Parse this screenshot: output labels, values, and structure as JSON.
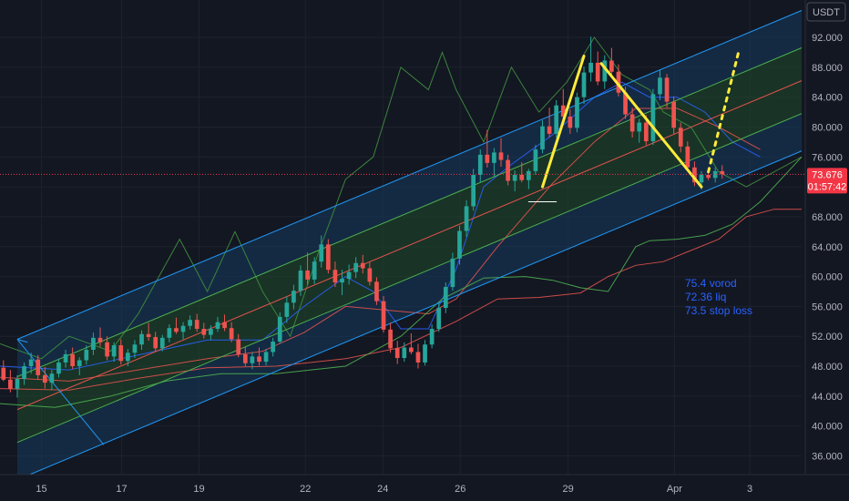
{
  "chart_data": {
    "type": "candlestick",
    "currency_label": "USDT",
    "y_axis": {
      "ticks": [
        36,
        40,
        44,
        48,
        52,
        56,
        60,
        64,
        68,
        72,
        76,
        80,
        84,
        88,
        92
      ],
      "tick_labels": [
        "36.000",
        "40.000",
        "44.000",
        "48.000",
        "52.000",
        "56.000",
        "60.000",
        "64.000",
        "68.000",
        "72.000",
        "76.000",
        "80.000",
        "84.000",
        "88.000",
        "92.000"
      ],
      "ylim": [
        33.5,
        97
      ]
    },
    "x_axis": {
      "labels": [
        "15",
        "17",
        "19",
        "22",
        "24",
        "26",
        "29",
        "Apr",
        "3"
      ],
      "label_bars": [
        6,
        17.6,
        28.8,
        44.2,
        55.4,
        66.6,
        82.2,
        97.6,
        108.5
      ],
      "xlim": [
        0,
        116
      ]
    },
    "last_price": {
      "value": "73.676",
      "countdown": "01:57:42",
      "numeric": 73.676
    },
    "candles": [
      [
        47.8,
        48.8,
        46.0,
        46.2
      ],
      [
        46.2,
        47.5,
        44.5,
        45.0
      ],
      [
        45.0,
        46.8,
        43.8,
        46.3
      ],
      [
        46.3,
        48.5,
        45.5,
        48.0
      ],
      [
        48.0,
        49.8,
        47.0,
        48.9
      ],
      [
        48.9,
        49.5,
        46.2,
        46.8
      ],
      [
        46.8,
        47.9,
        45.0,
        45.8
      ],
      [
        45.8,
        47.5,
        44.8,
        47.0
      ],
      [
        47.0,
        49.0,
        46.5,
        48.5
      ],
      [
        48.5,
        50.2,
        47.8,
        49.6
      ],
      [
        49.6,
        50.5,
        47.6,
        48.0
      ],
      [
        48.0,
        49.2,
        46.8,
        48.8
      ],
      [
        48.8,
        50.8,
        48.2,
        50.2
      ],
      [
        50.2,
        52.5,
        49.5,
        51.8
      ],
      [
        51.8,
        53.2,
        50.6,
        51.2
      ],
      [
        51.2,
        52.0,
        48.8,
        49.3
      ],
      [
        49.3,
        51.2,
        48.6,
        50.8
      ],
      [
        50.8,
        51.6,
        48.2,
        48.7
      ],
      [
        48.7,
        50.3,
        48.0,
        49.8
      ],
      [
        49.8,
        51.5,
        49.1,
        50.9
      ],
      [
        50.9,
        52.8,
        50.2,
        52.3
      ],
      [
        52.3,
        53.8,
        51.4,
        51.9
      ],
      [
        51.9,
        52.6,
        49.9,
        50.4
      ],
      [
        50.4,
        52.2,
        50.0,
        51.8
      ],
      [
        51.8,
        53.6,
        51.2,
        53.1
      ],
      [
        53.1,
        54.5,
        52.3,
        52.6
      ],
      [
        52.6,
        53.9,
        51.6,
        53.4
      ],
      [
        53.4,
        54.8,
        52.9,
        54.2
      ],
      [
        54.2,
        55.0,
        52.6,
        53.0
      ],
      [
        53.0,
        53.8,
        51.7,
        52.2
      ],
      [
        52.2,
        53.5,
        51.5,
        53.0
      ],
      [
        53.0,
        54.6,
        52.6,
        53.9
      ],
      [
        53.9,
        54.9,
        52.7,
        53.1
      ],
      [
        53.1,
        53.9,
        51.2,
        51.6
      ],
      [
        51.6,
        52.3,
        49.2,
        49.6
      ],
      [
        49.6,
        50.6,
        48.0,
        48.4
      ],
      [
        48.4,
        49.9,
        47.6,
        49.3
      ],
      [
        49.3,
        50.5,
        48.1,
        48.6
      ],
      [
        48.6,
        50.3,
        48.1,
        49.9
      ],
      [
        49.9,
        51.8,
        49.3,
        51.3
      ],
      [
        51.3,
        55.2,
        51.0,
        54.6
      ],
      [
        54.6,
        57.3,
        53.8,
        56.5
      ],
      [
        56.5,
        58.9,
        55.6,
        58.1
      ],
      [
        58.1,
        61.5,
        57.4,
        60.8
      ],
      [
        60.8,
        63.2,
        58.9,
        59.6
      ],
      [
        59.6,
        62.6,
        59.0,
        62.0
      ],
      [
        62.0,
        65.5,
        61.2,
        64.3
      ],
      [
        64.3,
        65.0,
        60.4,
        60.9
      ],
      [
        60.9,
        62.0,
        58.6,
        59.2
      ],
      [
        59.2,
        60.9,
        57.5,
        59.7
      ],
      [
        59.7,
        61.6,
        58.9,
        60.6
      ],
      [
        60.6,
        62.6,
        59.8,
        61.8
      ],
      [
        61.8,
        62.9,
        60.4,
        61.1
      ],
      [
        61.1,
        61.9,
        58.8,
        59.3
      ],
      [
        59.3,
        59.9,
        56.2,
        56.7
      ],
      [
        56.7,
        57.4,
        52.5,
        52.9
      ],
      [
        52.9,
        53.8,
        49.8,
        50.4
      ],
      [
        50.4,
        51.4,
        48.3,
        49.1
      ],
      [
        49.1,
        51.2,
        48.6,
        50.5
      ],
      [
        50.5,
        52.4,
        49.6,
        49.9
      ],
      [
        49.9,
        51.0,
        47.7,
        48.5
      ],
      [
        48.5,
        51.5,
        48.1,
        50.9
      ],
      [
        50.9,
        53.6,
        50.4,
        53.0
      ],
      [
        53.0,
        56.4,
        52.6,
        55.8
      ],
      [
        55.8,
        59.2,
        55.1,
        58.6
      ],
      [
        58.6,
        63.2,
        58.1,
        62.4
      ],
      [
        62.4,
        66.8,
        61.6,
        66.1
      ],
      [
        66.1,
        70.2,
        65.3,
        69.4
      ],
      [
        69.4,
        74.4,
        68.8,
        73.6
      ],
      [
        73.6,
        77.0,
        72.6,
        76.3
      ],
      [
        76.3,
        79.6,
        74.6,
        75.2
      ],
      [
        75.2,
        77.2,
        73.4,
        76.6
      ],
      [
        76.6,
        78.5,
        74.7,
        75.6
      ],
      [
        75.6,
        76.3,
        72.2,
        72.8
      ],
      [
        72.8,
        74.2,
        71.4,
        73.6
      ],
      [
        73.6,
        75.3,
        72.6,
        72.9
      ],
      [
        72.9,
        74.4,
        71.7,
        74.1
      ],
      [
        74.1,
        77.6,
        73.6,
        77.0
      ],
      [
        77.0,
        80.9,
        76.5,
        80.1
      ],
      [
        80.1,
        82.6,
        78.6,
        79.1
      ],
      [
        79.1,
        83.6,
        78.6,
        82.9
      ],
      [
        82.9,
        85.1,
        80.6,
        81.4
      ],
      [
        81.4,
        82.4,
        79.1,
        79.9
      ],
      [
        79.9,
        84.6,
        79.3,
        84.0
      ],
      [
        84.0,
        88.1,
        83.1,
        87.3
      ],
      [
        87.3,
        92.1,
        86.1,
        88.6
      ],
      [
        88.6,
        90.1,
        85.6,
        86.1
      ],
      [
        86.1,
        89.6,
        85.1,
        88.9
      ],
      [
        88.9,
        90.6,
        86.6,
        87.4
      ],
      [
        87.4,
        88.4,
        84.1,
        84.6
      ],
      [
        84.6,
        85.4,
        81.1,
        81.7
      ],
      [
        81.7,
        82.6,
        78.6,
        79.4
      ],
      [
        79.4,
        81.1,
        77.9,
        80.6
      ],
      [
        80.6,
        81.6,
        77.6,
        78.1
      ],
      [
        78.1,
        85.1,
        77.6,
        84.4
      ],
      [
        84.4,
        87.6,
        83.6,
        86.6
      ],
      [
        86.6,
        87.1,
        82.6,
        83.4
      ],
      [
        83.4,
        84.1,
        79.1,
        79.9
      ],
      [
        79.9,
        80.6,
        76.6,
        77.4
      ],
      [
        77.4,
        78.1,
        74.1,
        74.6
      ],
      [
        74.6,
        75.4,
        72.1,
        72.6
      ],
      [
        72.6,
        74.1,
        71.6,
        73.6
      ],
      [
        73.6,
        74.4,
        72.9,
        73.2
      ],
      [
        73.2,
        74.6,
        72.6,
        74.1
      ],
      [
        74.1,
        74.9,
        73.1,
        73.676
      ]
    ],
    "channel": {
      "x_range": [
        2.5,
        116
      ],
      "mid_line": [
        42.2,
        86.2
      ],
      "bands": [
        {
          "offset_low": -4.4,
          "offset_high": 0,
          "fill": "#1f4a2a"
        },
        {
          "offset_low": 0,
          "offset_high": 4.4,
          "fill": "#1f4a2a"
        },
        {
          "offset_low": -9.4,
          "offset_high": -4.4,
          "fill": "#153a5c"
        },
        {
          "offset_low": 4.4,
          "offset_high": 9.4,
          "fill": "#153a5c"
        }
      ],
      "lines": [
        {
          "offset": 0,
          "color": "#e0524c"
        },
        {
          "offset": 4.4,
          "color": "#4caf50"
        },
        {
          "offset": -4.4,
          "color": "#4caf50"
        },
        {
          "offset": 9.4,
          "color": "#2196f3"
        },
        {
          "offset": -9.4,
          "color": "#2196f3"
        }
      ],
      "flag_lines": [
        [
          [
            2.5,
            51.6
          ],
          [
            15,
            37.5
          ]
        ],
        [
          [
            2.5,
            51.6
          ],
          [
            4,
            51.2
          ]
        ]
      ]
    },
    "indicators": [
      {
        "color": "#3f8f3f",
        "points": [
          [
            0,
            51
          ],
          [
            6,
            49
          ],
          [
            10,
            52
          ],
          [
            16,
            50
          ],
          [
            20,
            55
          ],
          [
            26,
            65
          ],
          [
            30,
            58
          ],
          [
            34,
            66
          ],
          [
            38,
            58
          ],
          [
            42,
            52
          ],
          [
            46,
            63
          ],
          [
            50,
            73
          ],
          [
            54,
            76
          ],
          [
            58,
            88
          ],
          [
            62,
            85
          ],
          [
            64,
            90
          ],
          [
            66,
            85
          ],
          [
            70,
            78
          ],
          [
            74,
            88
          ],
          [
            78,
            82
          ],
          [
            82,
            86
          ],
          [
            86,
            92
          ],
          [
            90,
            87
          ],
          [
            94,
            85
          ],
          [
            96,
            82
          ],
          [
            100,
            80
          ],
          [
            104,
            74
          ],
          [
            108,
            72
          ],
          [
            112,
            74
          ],
          [
            116,
            76
          ]
        ]
      },
      {
        "color": "#2962ff",
        "points": [
          [
            0,
            48
          ],
          [
            10,
            47.5
          ],
          [
            20,
            49.5
          ],
          [
            30,
            51.5
          ],
          [
            38,
            51.5
          ],
          [
            44,
            56
          ],
          [
            50,
            60
          ],
          [
            54,
            58
          ],
          [
            58,
            53
          ],
          [
            62,
            53
          ],
          [
            66,
            61
          ],
          [
            70,
            72
          ],
          [
            74,
            75
          ],
          [
            80,
            79
          ],
          [
            86,
            84
          ],
          [
            90,
            86
          ],
          [
            94,
            84
          ],
          [
            98,
            84
          ],
          [
            102,
            82
          ],
          [
            106,
            78
          ],
          [
            110,
            76
          ]
        ]
      },
      {
        "color": "#e0524c",
        "points": [
          [
            0,
            46.5
          ],
          [
            10,
            46.0
          ],
          [
            20,
            47.5
          ],
          [
            30,
            49.0
          ],
          [
            38,
            50.0
          ],
          [
            44,
            52.5
          ],
          [
            50,
            56.0
          ],
          [
            56,
            55.5
          ],
          [
            62,
            55.0
          ],
          [
            66,
            57.0
          ],
          [
            72,
            64.0
          ],
          [
            80,
            72.5
          ],
          [
            86,
            78.0
          ],
          [
            92,
            82.5
          ],
          [
            98,
            82.5
          ],
          [
            104,
            80.0
          ],
          [
            110,
            77.0
          ]
        ]
      },
      {
        "color": "#e0524c",
        "points": [
          [
            0,
            45
          ],
          [
            10,
            44.8
          ],
          [
            20,
            46.4
          ],
          [
            30,
            47.8
          ],
          [
            40,
            48
          ],
          [
            50,
            49
          ],
          [
            58,
            50.5
          ],
          [
            66,
            54
          ],
          [
            72,
            57
          ],
          [
            78,
            57.2
          ],
          [
            84,
            57.8
          ],
          [
            88,
            60
          ],
          [
            92,
            61.5
          ],
          [
            96,
            62
          ],
          [
            100,
            63.5
          ],
          [
            104,
            65
          ],
          [
            108,
            68
          ],
          [
            112,
            69
          ],
          [
            116,
            69
          ]
        ]
      },
      {
        "color": "#4caf50",
        "points": [
          [
            0,
            43
          ],
          [
            8,
            42.5
          ],
          [
            16,
            44
          ],
          [
            24,
            46
          ],
          [
            32,
            47
          ],
          [
            40,
            47
          ],
          [
            50,
            48
          ],
          [
            58,
            52
          ],
          [
            64,
            57
          ],
          [
            70,
            59.8
          ],
          [
            76,
            60
          ],
          [
            80,
            59.5
          ],
          [
            84,
            58.5
          ],
          [
            88,
            58
          ],
          [
            90,
            61
          ],
          [
            92,
            64
          ],
          [
            94,
            64.8
          ],
          [
            98,
            65
          ],
          [
            102,
            65.5
          ],
          [
            106,
            67
          ],
          [
            110,
            70
          ],
          [
            114,
            74
          ],
          [
            116,
            76
          ]
        ]
      }
    ],
    "annotations": {
      "lines": [
        {
          "color": "#ffeb3b",
          "dashed": false,
          "points": [
            [
              78.5,
              72
            ],
            [
              84.5,
              89.5
            ]
          ]
        },
        {
          "color": "#ffeb3b",
          "dashed": false,
          "points": [
            [
              87,
              88.5
            ],
            [
              101.5,
              72
            ]
          ]
        },
        {
          "color": "#ffeb3b",
          "dashed": true,
          "points": [
            [
              102.5,
              74
            ],
            [
              107,
              90.5
            ]
          ]
        },
        {
          "color": "#ffffff",
          "dashed": false,
          "points": [
            [
              76.5,
              70
            ],
            [
              80.5,
              70
            ]
          ]
        }
      ],
      "entries": {
        "labels": [
          "75.4 vorod",
          "72.36 liq",
          "73.5 stop loss"
        ]
      }
    }
  }
}
